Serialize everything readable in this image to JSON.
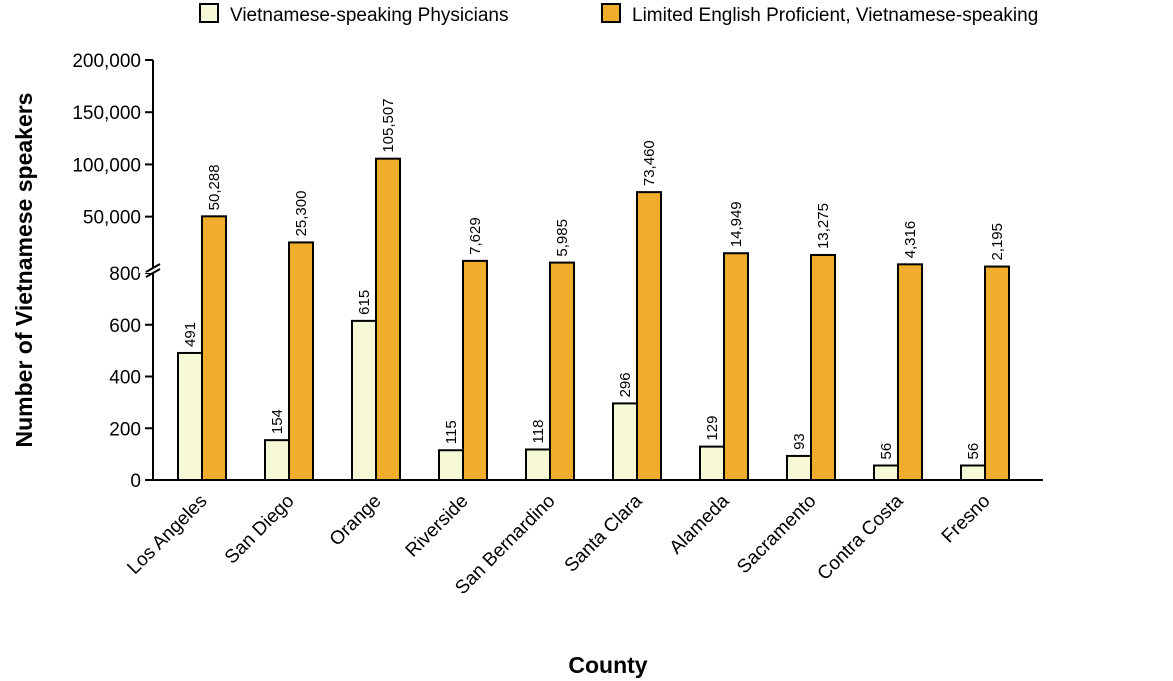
{
  "chart_data": {
    "type": "bar",
    "title": "",
    "xlabel": "County",
    "ylabel": "Number of Vietnamese speakers",
    "categories": [
      "Los Angeles",
      "San Diego",
      "Orange",
      "Riverside",
      "San Bernardino",
      "Santa Clara",
      "Alameda",
      "Sacramento",
      "Contra Costa",
      "Fresno"
    ],
    "series": [
      {
        "name": "Vietnamese-speaking Physicians",
        "values": [
          491,
          154,
          615,
          115,
          118,
          296,
          129,
          93,
          56,
          56
        ],
        "labels": [
          "491",
          "154",
          "615",
          "115",
          "118",
          "296",
          "129",
          "93",
          "56",
          "56"
        ],
        "color": "#f7f9d6"
      },
      {
        "name": "Limited English Proficient, Vietnamese-speaking",
        "values": [
          50288,
          25300,
          105507,
          7629,
          5985,
          73460,
          14949,
          13275,
          4316,
          2195
        ],
        "labels": [
          "50,288",
          "25,300",
          "105,507",
          "7,629",
          "5,985",
          "73,460",
          "14,949",
          "13,275",
          "4,316",
          "2,195"
        ],
        "color": "#f0ad2c"
      }
    ],
    "y_axis": {
      "broken": true,
      "lower_segment": {
        "range": [
          0,
          800
        ],
        "ticks": [
          0,
          200,
          400,
          600,
          800
        ],
        "tick_labels": [
          "0",
          "200",
          "400",
          "600",
          "800"
        ]
      },
      "upper_segment": {
        "range": [
          800,
          200000
        ],
        "ticks": [
          50000,
          100000,
          150000,
          200000
        ],
        "tick_labels": [
          "50,000",
          "100,000",
          "150,000",
          "200,000"
        ]
      }
    },
    "grid": false,
    "legend_position": "top"
  }
}
